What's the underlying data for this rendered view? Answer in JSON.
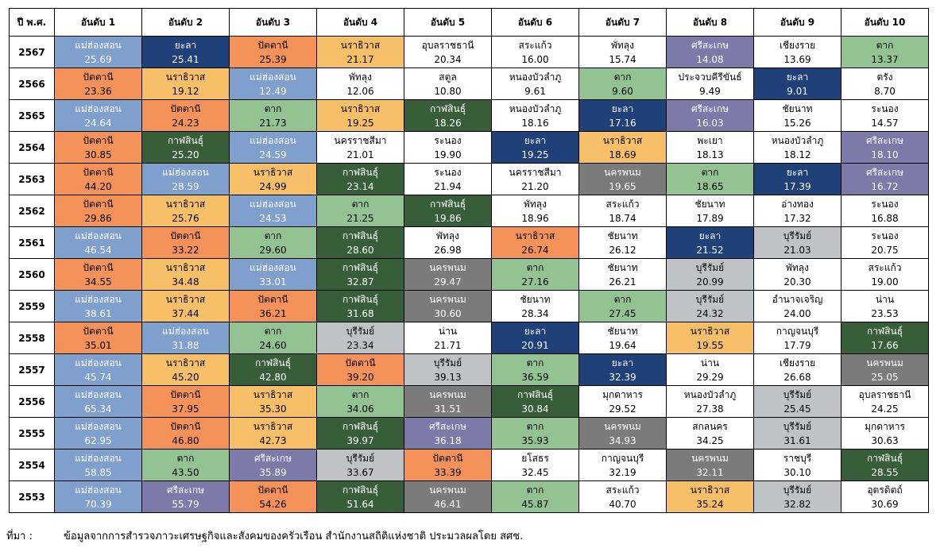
{
  "header": {
    "year_label": "ปี พ.ศ.",
    "ranks": [
      "อันดับ 1",
      "อันดับ 2",
      "อันดับ 3",
      "อันดับ 4",
      "อันดับ 5",
      "อันดับ 6",
      "อันดับ 7",
      "อันดับ 8",
      "อันดับ 9",
      "อันดับ 10"
    ]
  },
  "colors": {
    "blue": "#7f9fcd",
    "navy": "#1f4078",
    "orange": "#f4925a",
    "yellow": "#f7bf67",
    "lightgreen": "#93c392",
    "darkgreen": "#375e38",
    "purple": "#7b7aa8",
    "gray": "#7b7b7b",
    "lightgray": "#bfc3c5",
    "white": "#ffffff"
  },
  "rows": [
    {
      "year": "2567",
      "cells": [
        {
          "p": "แม่ฮ่องสอน",
          "v": "25.69",
          "c": "blue"
        },
        {
          "p": "ยะลา",
          "v": "25.41",
          "c": "navy"
        },
        {
          "p": "ปัตตานี",
          "v": "25.39",
          "c": "orange"
        },
        {
          "p": "นราธิวาส",
          "v": "21.17",
          "c": "yellow"
        },
        {
          "p": "อุบลราชธานี",
          "v": "20.34",
          "c": "white"
        },
        {
          "p": "สระแก้ว",
          "v": "16.00",
          "c": "white"
        },
        {
          "p": "พัทลุง",
          "v": "15.74",
          "c": "white"
        },
        {
          "p": "ศรีสะเกษ",
          "v": "14.08",
          "c": "purple"
        },
        {
          "p": "เชียงราย",
          "v": "13.69",
          "c": "white"
        },
        {
          "p": "ตาก",
          "v": "13.37",
          "c": "lightgreen"
        }
      ]
    },
    {
      "year": "2566",
      "cells": [
        {
          "p": "ปัตตานี",
          "v": "23.36",
          "c": "orange"
        },
        {
          "p": "นราธิวาส",
          "v": "19.12",
          "c": "yellow"
        },
        {
          "p": "แม่ฮ่องสอน",
          "v": "12.49",
          "c": "blue"
        },
        {
          "p": "พัทลุง",
          "v": "12.06",
          "c": "white"
        },
        {
          "p": "สตูล",
          "v": "10.80",
          "c": "white"
        },
        {
          "p": "หนองบัวลำภู",
          "v": "9.61",
          "c": "white"
        },
        {
          "p": "ตาก",
          "v": "9.60",
          "c": "lightgreen"
        },
        {
          "p": "ประจวบคีรีขันธ์",
          "v": "9.49",
          "c": "white"
        },
        {
          "p": "ยะลา",
          "v": "9.01",
          "c": "navy"
        },
        {
          "p": "ตรัง",
          "v": "8.70",
          "c": "white"
        }
      ]
    },
    {
      "year": "2565",
      "cells": [
        {
          "p": "แม่ฮ่องสอน",
          "v": "24.64",
          "c": "blue"
        },
        {
          "p": "ปัตตานี",
          "v": "24.23",
          "c": "orange"
        },
        {
          "p": "ตาก",
          "v": "21.73",
          "c": "lightgreen"
        },
        {
          "p": "นราธิวาส",
          "v": "19.25",
          "c": "yellow"
        },
        {
          "p": "กาฬสินธุ์",
          "v": "18.26",
          "c": "darkgreen"
        },
        {
          "p": "หนองบัวลำภู",
          "v": "18.16",
          "c": "white"
        },
        {
          "p": "ยะลา",
          "v": "17.16",
          "c": "navy"
        },
        {
          "p": "ศรีสะเกษ",
          "v": "16.03",
          "c": "purple"
        },
        {
          "p": "ชัยนาท",
          "v": "15.26",
          "c": "white"
        },
        {
          "p": "ระนอง",
          "v": "14.57",
          "c": "white"
        }
      ]
    },
    {
      "year": "2564",
      "cells": [
        {
          "p": "ปัตตานี",
          "v": "30.85",
          "c": "orange"
        },
        {
          "p": "กาฬสินธุ์",
          "v": "25.20",
          "c": "darkgreen"
        },
        {
          "p": "แม่ฮ่องสอน",
          "v": "24.59",
          "c": "blue"
        },
        {
          "p": "นครราชสีมา",
          "v": "21.01",
          "c": "white"
        },
        {
          "p": "ระนอง",
          "v": "19.90",
          "c": "white"
        },
        {
          "p": "ยะลา",
          "v": "19.25",
          "c": "navy"
        },
        {
          "p": "นราธิวาส",
          "v": "18.69",
          "c": "yellow"
        },
        {
          "p": "พะเยา",
          "v": "18.13",
          "c": "white"
        },
        {
          "p": "หนองบัวลำภู",
          "v": "18.12",
          "c": "white"
        },
        {
          "p": "ศรีสะเกษ",
          "v": "18.10",
          "c": "purple"
        }
      ]
    },
    {
      "year": "2563",
      "cells": [
        {
          "p": "ปัตตานี",
          "v": "44.20",
          "c": "orange"
        },
        {
          "p": "แม่ฮ่องสอน",
          "v": "28.59",
          "c": "blue"
        },
        {
          "p": "นราธิวาส",
          "v": "24.99",
          "c": "yellow"
        },
        {
          "p": "กาฬสินธุ์",
          "v": "23.14",
          "c": "darkgreen"
        },
        {
          "p": "ระนอง",
          "v": "21.94",
          "c": "white"
        },
        {
          "p": "นครราชสีมา",
          "v": "21.20",
          "c": "white"
        },
        {
          "p": "นครพนม",
          "v": "19.65",
          "c": "gray"
        },
        {
          "p": "ตาก",
          "v": "18.65",
          "c": "lightgreen"
        },
        {
          "p": "ยะลา",
          "v": "17.39",
          "c": "navy"
        },
        {
          "p": "ศรีสะเกษ",
          "v": "16.72",
          "c": "purple"
        }
      ]
    },
    {
      "year": "2562",
      "cells": [
        {
          "p": "ปัตตานี",
          "v": "29.86",
          "c": "orange"
        },
        {
          "p": "นราธิวาส",
          "v": "25.76",
          "c": "yellow"
        },
        {
          "p": "แม่ฮ่องสอน",
          "v": "24.53",
          "c": "blue"
        },
        {
          "p": "ตาก",
          "v": "21.25",
          "c": "lightgreen"
        },
        {
          "p": "กาฬสินธุ์",
          "v": "19.86",
          "c": "darkgreen"
        },
        {
          "p": "พัทลุง",
          "v": "18.96",
          "c": "white"
        },
        {
          "p": "สระแก้ว",
          "v": "18.74",
          "c": "white"
        },
        {
          "p": "ชัยนาท",
          "v": "17.89",
          "c": "white"
        },
        {
          "p": "อ่างทอง",
          "v": "17.32",
          "c": "white"
        },
        {
          "p": "ระนอง",
          "v": "16.88",
          "c": "white"
        }
      ]
    },
    {
      "year": "2561",
      "cells": [
        {
          "p": "แม่ฮ่องสอน",
          "v": "46.54",
          "c": "blue"
        },
        {
          "p": "ปัตตานี",
          "v": "33.22",
          "c": "orange"
        },
        {
          "p": "ตาก",
          "v": "29.60",
          "c": "lightgreen"
        },
        {
          "p": "กาฬสินธุ์",
          "v": "28.60",
          "c": "darkgreen"
        },
        {
          "p": "พัทลุง",
          "v": "26.98",
          "c": "white"
        },
        {
          "p": "นราธิวาส",
          "v": "26.74",
          "c": "orange"
        },
        {
          "p": "ชัยนาท",
          "v": "26.12",
          "c": "white"
        },
        {
          "p": "ยะลา",
          "v": "21.52",
          "c": "navy"
        },
        {
          "p": "บุรีรัมย์",
          "v": "21.03",
          "c": "lightgray"
        },
        {
          "p": "ระนอง",
          "v": "20.75",
          "c": "white"
        }
      ]
    },
    {
      "year": "2560",
      "cells": [
        {
          "p": "ปัตตานี",
          "v": "34.55",
          "c": "orange"
        },
        {
          "p": "นราธิวาส",
          "v": "34.48",
          "c": "yellow"
        },
        {
          "p": "แม่ฮ่องสอน",
          "v": "33.01",
          "c": "blue"
        },
        {
          "p": "กาฬสินธุ์",
          "v": "32.87",
          "c": "darkgreen"
        },
        {
          "p": "นครพนม",
          "v": "29.47",
          "c": "gray"
        },
        {
          "p": "ตาก",
          "v": "27.16",
          "c": "lightgreen"
        },
        {
          "p": "ชัยนาท",
          "v": "26.21",
          "c": "white"
        },
        {
          "p": "บุรีรัมย์",
          "v": "20.99",
          "c": "lightgray"
        },
        {
          "p": "พัทลุง",
          "v": "20.30",
          "c": "white"
        },
        {
          "p": "สระแก้ว",
          "v": "19.00",
          "c": "white"
        }
      ]
    },
    {
      "year": "2559",
      "cells": [
        {
          "p": "แม่ฮ่องสอน",
          "v": "38.61",
          "c": "blue"
        },
        {
          "p": "นราธิวาส",
          "v": "37.44",
          "c": "yellow"
        },
        {
          "p": "ปัตตานี",
          "v": "36.21",
          "c": "orange"
        },
        {
          "p": "กาฬสินธุ์",
          "v": "31.68",
          "c": "darkgreen"
        },
        {
          "p": "นครพนม",
          "v": "30.60",
          "c": "gray"
        },
        {
          "p": "ชัยนาท",
          "v": "28.34",
          "c": "white"
        },
        {
          "p": "ตาก",
          "v": "27.45",
          "c": "lightgreen"
        },
        {
          "p": "บุรีรัมย์",
          "v": "24.32",
          "c": "lightgray"
        },
        {
          "p": "อำนาจเจริญ",
          "v": "24.00",
          "c": "white"
        },
        {
          "p": "น่าน",
          "v": "23.53",
          "c": "white"
        }
      ]
    },
    {
      "year": "2558",
      "cells": [
        {
          "p": "ปัตตานี",
          "v": "35.01",
          "c": "orange"
        },
        {
          "p": "แม่ฮ่องสอน",
          "v": "31.88",
          "c": "blue"
        },
        {
          "p": "ตาก",
          "v": "24.60",
          "c": "lightgreen"
        },
        {
          "p": "บุรีรัมย์",
          "v": "23.34",
          "c": "lightgray"
        },
        {
          "p": "น่าน",
          "v": "21.71",
          "c": "white"
        },
        {
          "p": "ยะลา",
          "v": "20.91",
          "c": "navy"
        },
        {
          "p": "ชัยนาท",
          "v": "19.64",
          "c": "white"
        },
        {
          "p": "นราธิวาส",
          "v": "19.55",
          "c": "yellow"
        },
        {
          "p": "กาญจนบุรี",
          "v": "17.79",
          "c": "white"
        },
        {
          "p": "กาฬสินธุ์",
          "v": "17.66",
          "c": "darkgreen"
        }
      ]
    },
    {
      "year": "2557",
      "cells": [
        {
          "p": "แม่ฮ่องสอน",
          "v": "45.74",
          "c": "blue"
        },
        {
          "p": "นราธิวาส",
          "v": "45.20",
          "c": "yellow"
        },
        {
          "p": "กาฬสินธุ์",
          "v": "42.80",
          "c": "darkgreen"
        },
        {
          "p": "ปัตตานี",
          "v": "39.20",
          "c": "orange"
        },
        {
          "p": "บุรีรัมย์",
          "v": "39.13",
          "c": "lightgray"
        },
        {
          "p": "ตาก",
          "v": "36.59",
          "c": "lightgreen"
        },
        {
          "p": "ยะลา",
          "v": "32.39",
          "c": "navy"
        },
        {
          "p": "น่าน",
          "v": "29.29",
          "c": "white"
        },
        {
          "p": "เชียงราย",
          "v": "26.68",
          "c": "white"
        },
        {
          "p": "นครพนม",
          "v": "25.05",
          "c": "gray"
        }
      ]
    },
    {
      "year": "2556",
      "cells": [
        {
          "p": "แม่ฮ่องสอน",
          "v": "65.34",
          "c": "blue"
        },
        {
          "p": "ปัตตานี",
          "v": "37.95",
          "c": "orange"
        },
        {
          "p": "นราธิวาส",
          "v": "35.30",
          "c": "yellow"
        },
        {
          "p": "ตาก",
          "v": "34.06",
          "c": "lightgreen"
        },
        {
          "p": "นครพนม",
          "v": "31.51",
          "c": "gray"
        },
        {
          "p": "กาฬสินธุ์",
          "v": "30.84",
          "c": "darkgreen"
        },
        {
          "p": "มุกดาหาร",
          "v": "29.52",
          "c": "white"
        },
        {
          "p": "หนองบัวลำภู",
          "v": "27.38",
          "c": "white"
        },
        {
          "p": "บุรีรัมย์",
          "v": "25.45",
          "c": "lightgray"
        },
        {
          "p": "อุบลราชธานี",
          "v": "24.25",
          "c": "white"
        }
      ]
    },
    {
      "year": "2555",
      "cells": [
        {
          "p": "แม่ฮ่องสอน",
          "v": "62.95",
          "c": "blue"
        },
        {
          "p": "ปัตตานี",
          "v": "46.80",
          "c": "orange"
        },
        {
          "p": "นราธิวาส",
          "v": "42.73",
          "c": "yellow"
        },
        {
          "p": "กาฬสินธุ์",
          "v": "39.97",
          "c": "darkgreen"
        },
        {
          "p": "ศรีสะเกษ",
          "v": "36.18",
          "c": "purple"
        },
        {
          "p": "ตาก",
          "v": "35.93",
          "c": "lightgreen"
        },
        {
          "p": "นครพนม",
          "v": "34.93",
          "c": "gray"
        },
        {
          "p": "สกลนคร",
          "v": "34.25",
          "c": "white"
        },
        {
          "p": "บุรีรัมย์",
          "v": "31.61",
          "c": "lightgray"
        },
        {
          "p": "มุกดาหาร",
          "v": "30.63",
          "c": "white"
        }
      ]
    },
    {
      "year": "2554",
      "cells": [
        {
          "p": "แม่ฮ่องสอน",
          "v": "58.85",
          "c": "blue"
        },
        {
          "p": "ตาก",
          "v": "43.50",
          "c": "lightgreen"
        },
        {
          "p": "ศรีสะเกษ",
          "v": "35.89",
          "c": "purple"
        },
        {
          "p": "บุรีรัมย์",
          "v": "33.67",
          "c": "lightgray"
        },
        {
          "p": "ปัตตานี",
          "v": "33.39",
          "c": "orange"
        },
        {
          "p": "ยโสธร",
          "v": "32.45",
          "c": "white"
        },
        {
          "p": "กาญจนบุรี",
          "v": "32.19",
          "c": "white"
        },
        {
          "p": "นครพนม",
          "v": "32.11",
          "c": "gray"
        },
        {
          "p": "ราชบุรี",
          "v": "30.10",
          "c": "white"
        },
        {
          "p": "กาฬสินธุ์",
          "v": "28.55",
          "c": "darkgreen"
        }
      ]
    },
    {
      "year": "2553",
      "cells": [
        {
          "p": "แม่ฮ่องสอน",
          "v": "70.39",
          "c": "blue"
        },
        {
          "p": "ศรีสะเกษ",
          "v": "55.79",
          "c": "purple"
        },
        {
          "p": "ปัตตานี",
          "v": "54.26",
          "c": "orange"
        },
        {
          "p": "กาฬสินธุ์",
          "v": "51.64",
          "c": "darkgreen"
        },
        {
          "p": "นครพนม",
          "v": "46.41",
          "c": "gray"
        },
        {
          "p": "ตาก",
          "v": "45.87",
          "c": "lightgreen"
        },
        {
          "p": "สระแก้ว",
          "v": "40.70",
          "c": "white"
        },
        {
          "p": "นราธิวาส",
          "v": "35.24",
          "c": "yellow"
        },
        {
          "p": "บุรีรัมย์",
          "v": "32.82",
          "c": "lightgray"
        },
        {
          "p": "อุตรดิตถ์",
          "v": "30.69",
          "c": "white"
        }
      ]
    }
  ],
  "footer": {
    "label": "ที่มา :",
    "text": "ข้อมูลจากการสำรวจภาวะเศรษฐกิจและสังคมของครัวเรือน สำนักงานสถิติแห่งชาติ ประมวลผลโดย สศช."
  }
}
